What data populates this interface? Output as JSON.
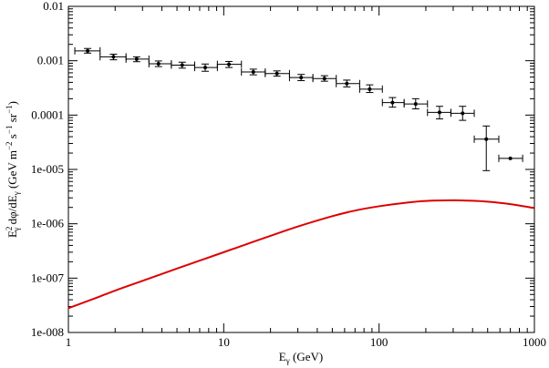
{
  "chart_data": {
    "type": "scatter",
    "x_scale": "log",
    "y_scale": "log",
    "xlim": [
      1,
      1000
    ],
    "ylim": [
      1e-08,
      0.01
    ],
    "grid": false,
    "x_ticks": [
      {
        "value": 1,
        "label": "1"
      },
      {
        "value": 10,
        "label": "10"
      },
      {
        "value": 100,
        "label": "100"
      },
      {
        "value": 1000,
        "label": "1000"
      }
    ],
    "y_ticks": [
      {
        "value": 1e-08,
        "label": "1e-008"
      },
      {
        "value": 1e-07,
        "label": "1e-007"
      },
      {
        "value": 1e-06,
        "label": "1e-006"
      },
      {
        "value": 1e-05,
        "label": "1e-005"
      },
      {
        "value": 0.0001,
        "label": "0.0001"
      },
      {
        "value": 0.001,
        "label": "0.001"
      },
      {
        "value": 0.01,
        "label": "0.01"
      }
    ],
    "xlabel": {
      "main": "E",
      "sub": "γ",
      "rest": " (GeV)"
    },
    "ylabel": {
      "p1": "E",
      "p1_sup": "2",
      "p1_sub": "γ",
      "p2": " dφ/dE",
      "p2_sub": "γ",
      "p3": " (GeV m",
      "p3_sup": "−2",
      "p4": " s",
      "p4_sup": "−1",
      "p5": " sr",
      "p5_sup": "−1",
      "p6": ")"
    },
    "series": [
      {
        "style": "errorbar",
        "color": "#000000",
        "points": [
          {
            "x": 1.33,
            "xlo": 1.1,
            "xhi": 1.6,
            "y": 0.00152,
            "ylo": 0.00138,
            "yhi": 0.00168
          },
          {
            "x": 1.95,
            "xlo": 1.6,
            "xhi": 2.35,
            "y": 0.00118,
            "ylo": 0.00104,
            "yhi": 0.00132
          },
          {
            "x": 2.75,
            "xlo": 2.35,
            "xhi": 3.3,
            "y": 0.00107,
            "ylo": 0.00096,
            "yhi": 0.00118
          },
          {
            "x": 3.8,
            "xlo": 3.3,
            "xhi": 4.6,
            "y": 0.00088,
            "ylo": 0.00078,
            "yhi": 0.00099
          },
          {
            "x": 5.4,
            "xlo": 4.6,
            "xhi": 6.5,
            "y": 0.00083,
            "ylo": 0.00073,
            "yhi": 0.00094
          },
          {
            "x": 7.6,
            "xlo": 6.5,
            "xhi": 9.1,
            "y": 0.00075,
            "ylo": 0.00064,
            "yhi": 0.00087
          },
          {
            "x": 10.8,
            "xlo": 9.1,
            "xhi": 13.0,
            "y": 0.00086,
            "ylo": 0.00075,
            "yhi": 0.00097
          },
          {
            "x": 15.5,
            "xlo": 13.0,
            "xhi": 18.5,
            "y": 0.00062,
            "ylo": 0.00055,
            "yhi": 0.0007
          },
          {
            "x": 22.0,
            "xlo": 18.5,
            "xhi": 26.5,
            "y": 0.00058,
            "ylo": 0.00052,
            "yhi": 0.00065
          },
          {
            "x": 31.5,
            "xlo": 26.5,
            "xhi": 37.5,
            "y": 0.00049,
            "ylo": 0.00043,
            "yhi": 0.00056
          },
          {
            "x": 44.5,
            "xlo": 37.5,
            "xhi": 53.0,
            "y": 0.00047,
            "ylo": 0.00042,
            "yhi": 0.00053
          },
          {
            "x": 62.0,
            "xlo": 53.0,
            "xhi": 75.0,
            "y": 0.00038,
            "ylo": 0.00033,
            "yhi": 0.00044
          },
          {
            "x": 87.0,
            "xlo": 75.0,
            "xhi": 105.0,
            "y": 0.0003,
            "ylo": 0.00026,
            "yhi": 0.00036
          },
          {
            "x": 122.0,
            "xlo": 105.0,
            "xhi": 145.0,
            "y": 0.00017,
            "ylo": 0.00014,
            "yhi": 0.00021
          },
          {
            "x": 172.0,
            "xlo": 145.0,
            "xhi": 205.0,
            "y": 0.00016,
            "ylo": 0.00013,
            "yhi": 0.0002
          },
          {
            "x": 245.0,
            "xlo": 205.0,
            "xhi": 290.0,
            "y": 0.000112,
            "ylo": 8.5e-05,
            "yhi": 0.000145
          },
          {
            "x": 345.0,
            "xlo": 290.0,
            "xhi": 410.0,
            "y": 0.000108,
            "ylo": 8e-05,
            "yhi": 0.000145
          },
          {
            "x": 490.0,
            "xlo": 410.0,
            "xhi": 590.0,
            "y": 3.6e-05,
            "ylo": 9.5e-06,
            "yhi": 6.3e-05
          },
          {
            "x": 700.0,
            "xlo": 590.0,
            "xhi": 840.0,
            "y": 1.6e-05,
            "ylo": 1.6e-05,
            "yhi": 1.6e-05
          }
        ]
      },
      {
        "style": "line",
        "color": "#dd0000",
        "x": [
          1,
          1.5,
          2,
          3,
          5,
          7,
          10,
          15,
          20,
          30,
          50,
          70,
          100,
          150,
          200,
          300,
          400,
          500,
          700,
          1000
        ],
        "y": [
          2.8e-08,
          4.3e-08,
          5.9e-08,
          8.9e-08,
          1.5e-07,
          2.1e-07,
          3e-07,
          4.5e-07,
          6e-07,
          8.9e-07,
          1.38e-06,
          1.75e-06,
          2.1e-06,
          2.45e-06,
          2.63e-06,
          2.7e-06,
          2.65e-06,
          2.55e-06,
          2.3e-06,
          1.95e-06
        ]
      }
    ]
  }
}
